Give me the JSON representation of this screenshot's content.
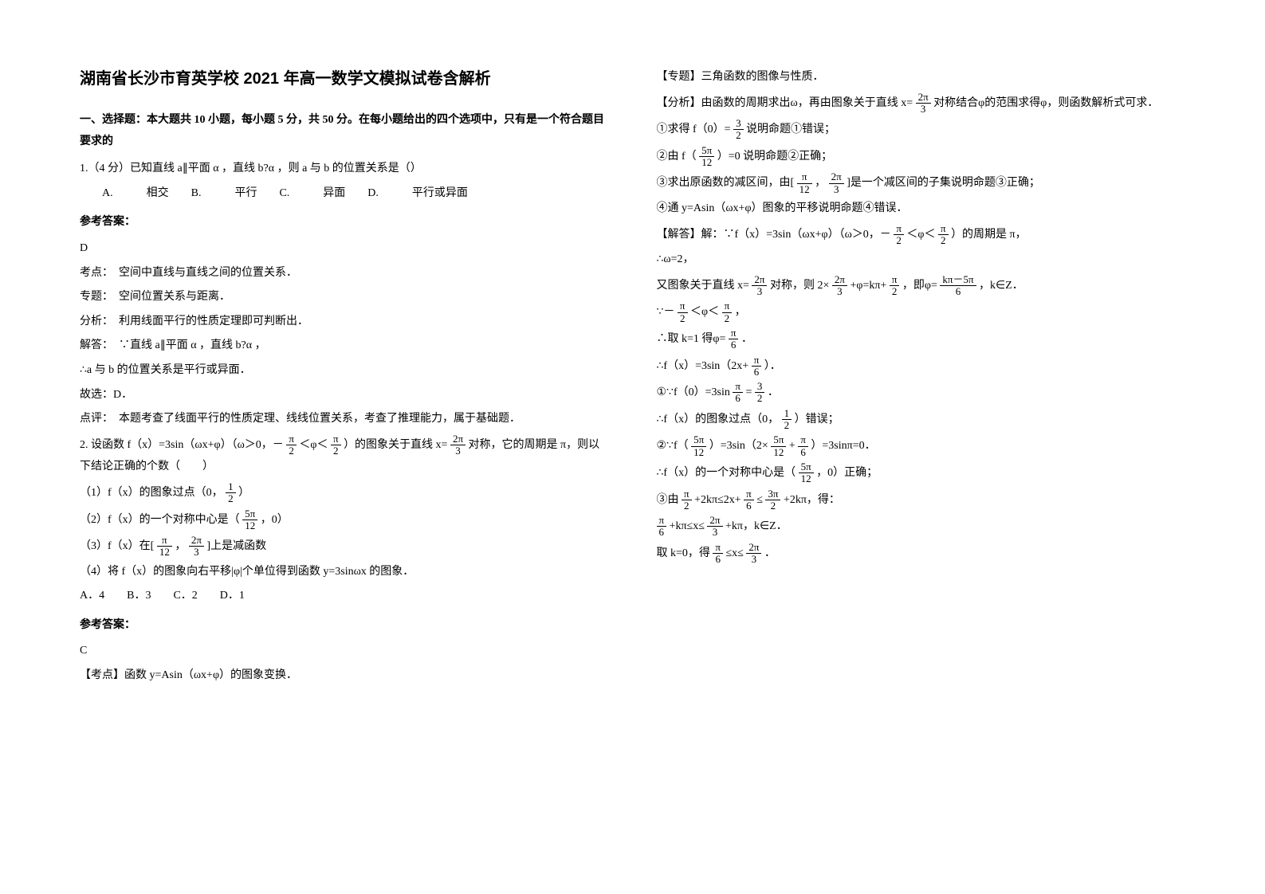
{
  "title": "湖南省长沙市育英学校 2021 年高一数学文模拟试卷含解析",
  "section1_head": "一、选择题：本大题共 10 小题，每小题 5 分，共 50 分。在每小题给出的四个选项中，只有是一个符合题目要求的",
  "q1": {
    "stem": "1.（4 分）已知直线 a∥平面 α ，直线 b?α ，则 a 与 b 的位置关系是（）",
    "opts": "A.　　　相交　　B.　　　平行　　C.　　　异面　　D.　　　平行或异面",
    "ans_head": "参考答案：",
    "ans_letter": "D",
    "lines": [
      "考点：　空间中直线与直线之间的位置关系．",
      "专题：　空间位置关系与距离．",
      "分析：　利用线面平行的性质定理即可判断出．",
      "解答：　∵直线 a∥平面 α ，直线 b?α ，",
      "∴a 与 b 的位置关系是平行或异面．",
      "故选：D．",
      "点评：　本题考查了线面平行的性质定理、线线位置关系，考查了推理能力，属于基础题．"
    ]
  },
  "q2": {
    "stem_pre": "2. 设函数 f（x）=3sin（ωx+φ）（ω＞0，－",
    "stem_mid1": "＜φ＜",
    "stem_mid2": "）的图象关于直线 x=",
    "stem_post": " 对称，它的周期是 π，则以下结论正确的个数（　　）",
    "item1_pre": "（1）f（x）的图象过点（0，",
    "item1_post": "）",
    "item2_pre": "（2）f（x）的一个对称中心是（",
    "item2_post": "，0）",
    "item3_pre": "（3）f（x）在[",
    "item3_mid": "，",
    "item3_post": "]上是减函数",
    "item4": "（4）将 f（x）的图象向右平移|φ|个单位得到函数 y=3sinωx 的图象．",
    "opts": "A．4　　B．3　　C．2　　D．1",
    "ans_head": "参考答案：",
    "ans_letter": "C",
    "kp": "【考点】函数 y=Asin（ωx+φ）的图象变换．"
  },
  "right": {
    "zhuanti": "【专题】三角函数的图像与性质．",
    "fenxi_pre": "【分析】由函数的周期求出ω，再由图象关于直线 x=",
    "fenxi_post": " 对称结合φ的范围求得φ，则函数解析式可求．",
    "l1_pre": "①求得 f（0）=",
    "l1_post": "说明命题①错误；",
    "l2_pre": "②由 f（",
    "l2_post": "）=0 说明命题②正确；",
    "l3_pre": "③求出原函数的减区间，由[",
    "l3_mid": "，",
    "l3_post": "]是一个减区间的子集说明命题③正确；",
    "l4": "④通 y=Asin（ωx+φ）图象的平移说明命题④错误．",
    "jieda_pre": "【解答】解：∵f（x）=3sin（ωx+φ）（ω＞0，－",
    "jieda_mid": "＜φ＜",
    "jieda_post": "）的周期是 π，",
    "omega": "∴ω=2，",
    "sym_pre": "又图象关于直线 x=",
    "sym_mid1": " 对称，则 2×",
    "sym_mid2": "+φ=kπ+",
    "sym_mid3": "，即φ=",
    "sym_post": "，k∈Z．",
    "range_pre": "∵－",
    "range_mid": "＜φ＜",
    "range_post": "，",
    "take_pre": "∴取 k=1 得φ=",
    "take_post": "．",
    "fx_pre": "∴f（x）=3sin（2x+",
    "fx_post": "）．",
    "r1_pre": "①∵f（0）=3sin",
    "r1_mid": "=",
    "r1_post": "．",
    "r1b_pre": "∴f（x）的图象过点（0，",
    "r1b_post": "）错误；",
    "r2_pre": "②∵f（",
    "r2_mid1": "）=3sin（2×",
    "r2_mid2": "+",
    "r2_post": "）=3sinπ=0．",
    "r2b_pre": "∴f（x）的一个对称中心是（",
    "r2b_post": "，0）正确；",
    "r3_pre": "③由",
    "r3_m1": "+2kπ≤2x+",
    "r3_m2": "≤",
    "r3_m3": "+2kπ，得：",
    "r3b_m1": "+kπ≤x≤",
    "r3b_m2": "+kπ，k∈Z．",
    "r3c_pre": "取 k=0，得",
    "r3c_mid": "≤x≤",
    "r3c_post": "．"
  },
  "fracs": {
    "pi2": {
      "n": "π",
      "d": "2"
    },
    "2pi3": {
      "n": "2π",
      "d": "3"
    },
    "half": {
      "n": "1",
      "d": "2"
    },
    "5pi12": {
      "n": "5π",
      "d": "12"
    },
    "pi12": {
      "n": "π",
      "d": "12"
    },
    "3_2": {
      "n": "3",
      "d": "2"
    },
    "pi6": {
      "n": "π",
      "d": "6"
    },
    "kpi5pi6": {
      "n": "kπ－5π",
      "d": "6"
    },
    "3pi2": {
      "n": "3π",
      "d": "2"
    }
  }
}
